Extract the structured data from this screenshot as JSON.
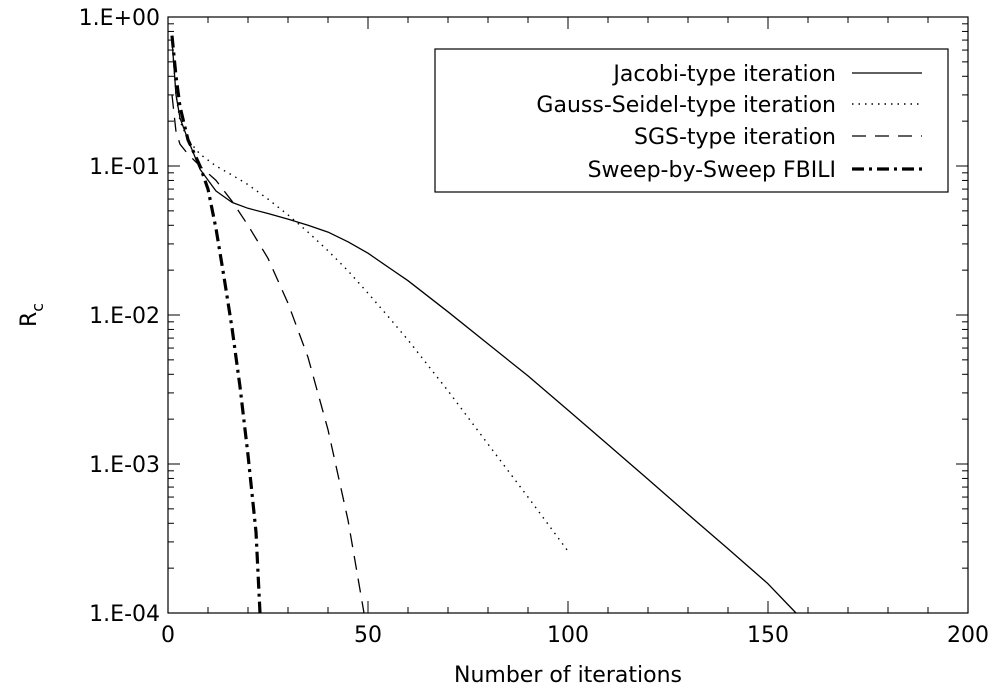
{
  "chart_data": {
    "type": "line",
    "xlabel": "Number of iterations",
    "ylabel_main": "R",
    "ylabel_sub": "c",
    "xlim": [
      0,
      200
    ],
    "ylim": [
      0.0001,
      1
    ],
    "yscale": "log",
    "grid": false,
    "legend_position": "top-right",
    "x_ticks": [
      {
        "value": 0,
        "label": "0"
      },
      {
        "value": 50,
        "label": "50"
      },
      {
        "value": 100,
        "label": "100"
      },
      {
        "value": 150,
        "label": "150"
      },
      {
        "value": 200,
        "label": "200"
      }
    ],
    "y_ticks": [
      {
        "value": 1,
        "label": "1.E+00"
      },
      {
        "value": 0.1,
        "label": "1.E-01"
      },
      {
        "value": 0.01,
        "label": "1.E-02"
      },
      {
        "value": 0.001,
        "label": "1.E-03"
      },
      {
        "value": 0.0001,
        "label": "1.E-04"
      }
    ],
    "series": [
      {
        "name": "Jacobi-type iteration",
        "style": "solid",
        "x": [
          1,
          2,
          3,
          5,
          8,
          12,
          16,
          20,
          25,
          30,
          35,
          40,
          45,
          50,
          55,
          60,
          70,
          80,
          90,
          100,
          110,
          120,
          130,
          140,
          150,
          157
        ],
        "y": [
          0.7,
          0.3,
          0.21,
          0.15,
          0.095,
          0.068,
          0.057,
          0.052,
          0.048,
          0.044,
          0.04,
          0.036,
          0.031,
          0.026,
          0.021,
          0.017,
          0.0105,
          0.0064,
          0.0039,
          0.0023,
          0.00135,
          0.00079,
          0.00046,
          0.00027,
          0.000157,
          0.0001
        ]
      },
      {
        "name": "Gauss-Seidel-type iteration",
        "style": "dotted",
        "x": [
          1,
          2,
          3,
          5,
          8,
          12,
          16,
          20,
          25,
          30,
          35,
          40,
          45,
          50,
          55,
          60,
          70,
          80,
          90,
          100
        ],
        "y": [
          0.7,
          0.3,
          0.2,
          0.15,
          0.12,
          0.1,
          0.087,
          0.075,
          0.06,
          0.047,
          0.036,
          0.027,
          0.0198,
          0.014,
          0.0098,
          0.0068,
          0.0031,
          0.00136,
          0.0006,
          0.00026
        ]
      },
      {
        "name": "SGS-type iteration",
        "style": "dashed",
        "x": [
          1,
          2,
          3,
          5,
          8,
          12,
          16,
          20,
          25,
          30,
          35,
          40,
          45,
          49
        ],
        "y": [
          0.3,
          0.17,
          0.14,
          0.12,
          0.1,
          0.08,
          0.058,
          0.04,
          0.024,
          0.012,
          0.0052,
          0.0017,
          0.00042,
          0.0001
        ]
      },
      {
        "name": "Sweep-by-Sweep FBILI",
        "style": "dashdot",
        "x": [
          1,
          2,
          3,
          5,
          8,
          10,
          12,
          14,
          16,
          18,
          20,
          22,
          23
        ],
        "y": [
          0.75,
          0.4,
          0.25,
          0.15,
          0.1,
          0.07,
          0.038,
          0.018,
          0.0082,
          0.0033,
          0.00115,
          0.00035,
          0.0001
        ]
      }
    ]
  }
}
